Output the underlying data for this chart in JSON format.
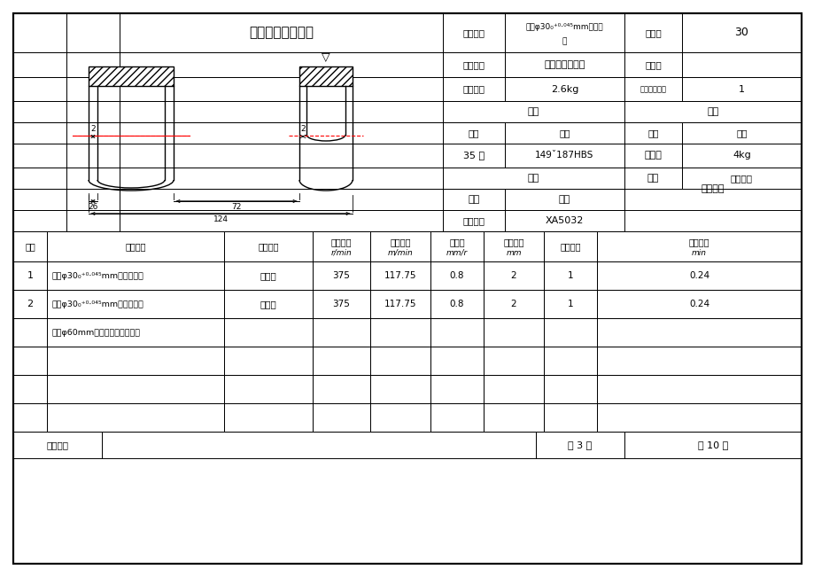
{
  "title": "机械加工工序卡片",
  "process_name_line1": "粗铣φ30₀⁺⁰⋅⁰⁴⁵mm孔内侧",
  "process_name_line2": "面",
  "process_no": "30",
  "part_name": "后钢板弹簧吊耳",
  "part_no": "",
  "part_weight": "2.6kg",
  "simultaneous_parts": "1",
  "brand": "35 钢",
  "hardness": "149ˇ187HBS",
  "mold_type": "模锻造",
  "weight": "4kg",
  "equipment_name": "立式铣床",
  "equipment_model": "XA5032",
  "fixture": "专用夹具",
  "step_row1": [
    "1",
    "粗铣φ30₀⁺⁰⋅⁰⁴⁵mm孔左内侧面",
    "端铣刀",
    "375",
    "117.75",
    "0.8",
    "2",
    "1",
    "0.24"
  ],
  "step_row2": [
    "2",
    "粗铣φ30₀⁺⁰⋅⁰⁴⁵mm孔右内侧面",
    "端铣刀",
    "375",
    "117.75",
    "0.8",
    "2",
    "1",
    "0.24"
  ],
  "step_row3": [
    "",
    "（以φ60mm孔两外圆端面定位）",
    "",
    "",
    "",
    "",
    "",
    "",
    ""
  ],
  "instructor": "指导老师",
  "page_text": "第 3 页",
  "total_text": "共 10 页",
  "bg_color": "#ffffff",
  "border_color": "#000000",
  "red_color": "#ff0000",
  "gray_color": "#888888"
}
